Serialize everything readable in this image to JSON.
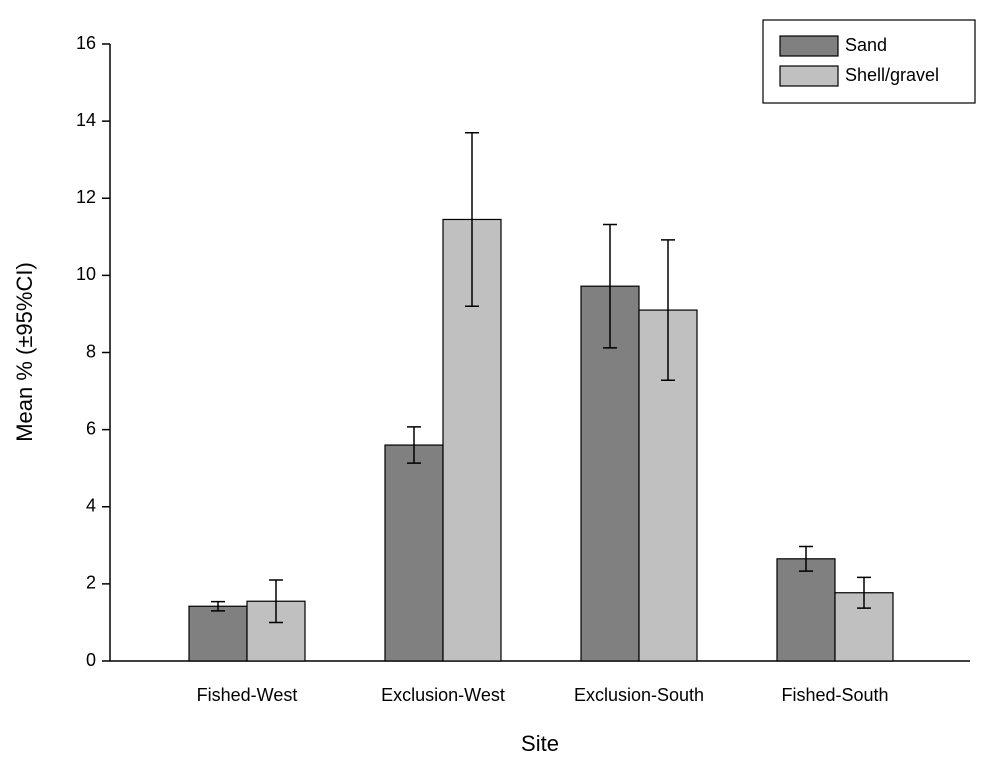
{
  "chart_data": {
    "type": "bar",
    "xlabel": "Site",
    "ylabel": "Mean % (±95%CI)",
    "categories": [
      "Fished-West",
      "Exclusion-West",
      "Exclusion-South",
      "Fished-South"
    ],
    "series": [
      {
        "name": "Sand",
        "color": "#808080",
        "values": [
          1.42,
          5.6,
          9.72,
          2.65
        ],
        "errors": [
          0.12,
          0.47,
          1.6,
          0.32
        ]
      },
      {
        "name": "Shell/gravel",
        "color": "#c0c0c0",
        "values": [
          1.55,
          11.45,
          9.1,
          1.77
        ],
        "errors": [
          0.55,
          2.25,
          1.82,
          0.4
        ]
      }
    ],
    "ylim": [
      0,
      16
    ],
    "yticks": [
      0,
      2,
      4,
      6,
      8,
      10,
      12,
      14,
      16
    ],
    "grid": false,
    "legend": "upper right"
  }
}
